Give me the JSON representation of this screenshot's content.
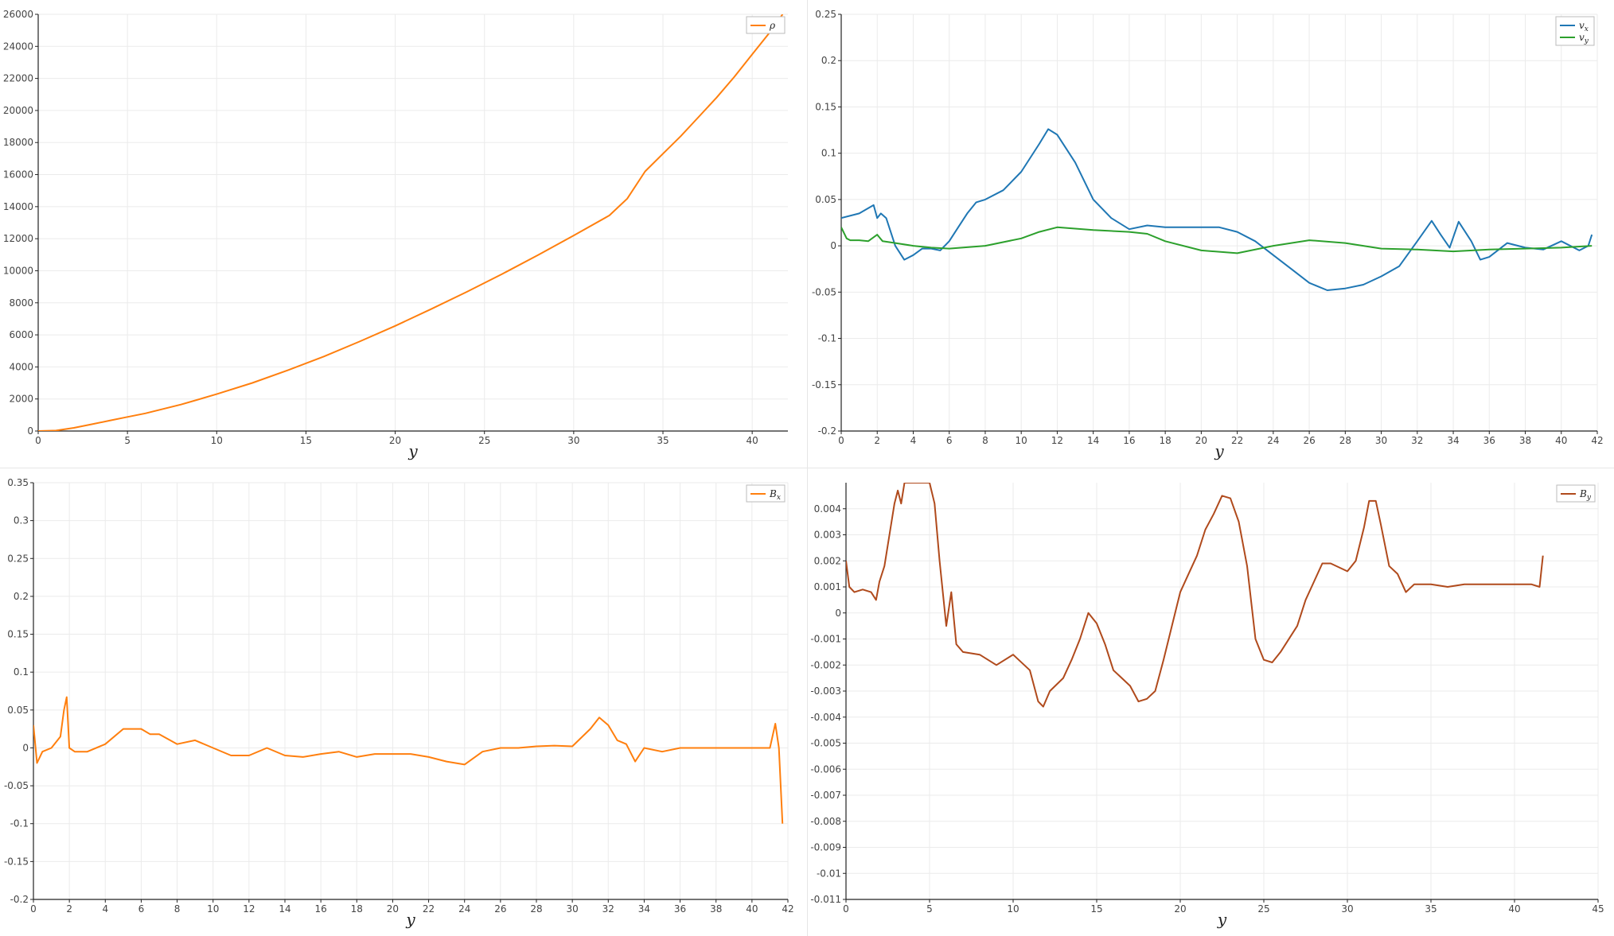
{
  "colors": {
    "orange": "#ff7f0e",
    "blue": "#1f77b4",
    "green": "#2ca02c",
    "brown": "#b04a1c",
    "grid": "#ebebeb",
    "axis": "#222222"
  },
  "chart_data": [
    {
      "id": "rho",
      "type": "line",
      "xlabel": "y",
      "xlim": [
        0,
        42
      ],
      "ylim": [
        0,
        26000
      ],
      "xticks": [
        0,
        5,
        10,
        15,
        20,
        25,
        30,
        35,
        40
      ],
      "yticks": [
        0,
        2000,
        4000,
        6000,
        8000,
        10000,
        12000,
        14000,
        16000,
        18000,
        20000,
        22000,
        24000,
        26000
      ],
      "legend": "top-right",
      "series": [
        {
          "name": "ρ",
          "name_sub": "",
          "color": "#ff7f0e",
          "x": [
            0,
            1,
            2,
            3,
            4,
            5,
            6,
            8,
            10,
            12,
            14,
            16,
            18,
            20,
            22,
            24,
            26,
            28,
            30,
            32,
            33,
            34,
            35,
            36,
            37,
            38,
            39,
            40,
            41,
            41.7
          ],
          "y": [
            0,
            30,
            200,
            420,
            650,
            880,
            1100,
            1650,
            2300,
            3000,
            3800,
            4650,
            5580,
            6560,
            7600,
            8680,
            9800,
            10980,
            12200,
            13450,
            14500,
            16200,
            17300,
            18400,
            19600,
            20800,
            22100,
            23500,
            24900,
            26000
          ]
        }
      ]
    },
    {
      "id": "velocity",
      "type": "line",
      "xlabel": "y",
      "xlim": [
        0,
        42
      ],
      "ylim": [
        -0.2,
        0.25
      ],
      "xticks": [
        0,
        2,
        4,
        6,
        8,
        10,
        12,
        14,
        16,
        18,
        20,
        22,
        24,
        26,
        28,
        30,
        32,
        34,
        36,
        38,
        40,
        42
      ],
      "yticks": [
        -0.2,
        -0.15,
        -0.1,
        -0.05,
        0,
        0.05,
        0.1,
        0.15,
        0.2,
        0.25
      ],
      "ytick_labels": [
        "-0.2",
        "-0.15",
        "-0.1",
        "-0.05",
        "0",
        "0.05",
        "0.1",
        "0.15",
        "0.2",
        "0.25"
      ],
      "legend": "top-right",
      "series": [
        {
          "name": "v",
          "name_sub": "x",
          "color": "#1f77b4",
          "x": [
            0,
            1,
            1.8,
            2.0,
            2.2,
            2.5,
            3,
            3.5,
            4,
            4.5,
            5,
            5.5,
            6,
            6.5,
            7,
            7.5,
            8,
            9,
            10,
            11,
            11.5,
            12,
            13,
            14,
            15,
            16,
            17,
            18,
            19,
            20,
            21,
            22,
            23,
            24,
            25,
            26,
            27,
            28,
            29,
            30,
            31,
            32,
            32.8,
            33.3,
            33.8,
            34.3,
            35,
            35.5,
            36,
            37,
            38,
            39,
            40,
            41,
            41.5,
            41.7
          ],
          "y": [
            0.03,
            0.035,
            0.044,
            0.03,
            0.035,
            0.03,
            0.0,
            -0.015,
            -0.01,
            -0.003,
            -0.003,
            -0.005,
            0.005,
            0.02,
            0.035,
            0.047,
            0.05,
            0.06,
            0.08,
            0.11,
            0.126,
            0.12,
            0.09,
            0.05,
            0.03,
            0.018,
            0.022,
            0.02,
            0.02,
            0.02,
            0.02,
            0.015,
            0.005,
            -0.01,
            -0.025,
            -0.04,
            -0.048,
            -0.046,
            -0.042,
            -0.033,
            -0.022,
            0.005,
            0.027,
            0.012,
            -0.002,
            0.026,
            0.005,
            -0.015,
            -0.012,
            0.003,
            -0.002,
            -0.004,
            0.005,
            -0.005,
            0.0,
            0.012
          ]
        },
        {
          "name": "v",
          "name_sub": "y",
          "color": "#2ca02c",
          "x": [
            0,
            0.3,
            0.5,
            1,
            1.5,
            2,
            2.3,
            3,
            4,
            5,
            6,
            8,
            10,
            11,
            12,
            14,
            16,
            17,
            18,
            20,
            22,
            24,
            26,
            28,
            30,
            32,
            34,
            36,
            38,
            40,
            41.7
          ],
          "y": [
            0.02,
            0.008,
            0.006,
            0.006,
            0.005,
            0.012,
            0.005,
            0.003,
            0.0,
            -0.002,
            -0.003,
            0.0,
            0.008,
            0.015,
            0.02,
            0.017,
            0.015,
            0.013,
            0.005,
            -0.005,
            -0.008,
            0.0,
            0.006,
            0.003,
            -0.003,
            -0.004,
            -0.006,
            -0.004,
            -0.003,
            -0.002,
            0.0
          ]
        }
      ]
    },
    {
      "id": "bx",
      "type": "line",
      "xlabel": "y",
      "xlim": [
        0,
        42
      ],
      "ylim": [
        -0.2,
        0.35
      ],
      "xticks": [
        0,
        2,
        4,
        6,
        8,
        10,
        12,
        14,
        16,
        18,
        20,
        22,
        24,
        26,
        28,
        30,
        32,
        34,
        36,
        38,
        40,
        42
      ],
      "yticks": [
        -0.2,
        -0.15,
        -0.1,
        -0.05,
        0,
        0.05,
        0.1,
        0.15,
        0.2,
        0.25,
        0.3,
        0.35
      ],
      "ytick_labels": [
        "-0.2",
        "-0.15",
        "-0.1",
        "-0.05",
        "0",
        "0.05",
        "0.1",
        "0.15",
        "0.2",
        "0.25",
        "0.3",
        "0.35"
      ],
      "legend": "top-right",
      "series": [
        {
          "name": "B",
          "name_sub": "x",
          "color": "#ff7f0e",
          "x": [
            0,
            0.2,
            0.5,
            1,
            1.5,
            1.7,
            1.85,
            2.0,
            2.3,
            3,
            4,
            5,
            6,
            6.5,
            7,
            8,
            9,
            10,
            11,
            12,
            13,
            14,
            15,
            16,
            17,
            18,
            19,
            20,
            21,
            22,
            23,
            24,
            25,
            26,
            27,
            28,
            29,
            30,
            31,
            31.5,
            32,
            32.5,
            33,
            33.5,
            34,
            35,
            36,
            37,
            38,
            39,
            40,
            41,
            41.3,
            41.5,
            41.7
          ],
          "y": [
            0.03,
            -0.02,
            -0.005,
            0.0,
            0.015,
            0.05,
            0.067,
            0.0,
            -0.005,
            -0.005,
            0.005,
            0.025,
            0.025,
            0.018,
            0.018,
            0.005,
            0.01,
            0.0,
            -0.01,
            -0.01,
            0.0,
            -0.01,
            -0.012,
            -0.008,
            -0.005,
            -0.012,
            -0.008,
            -0.008,
            -0.008,
            -0.012,
            -0.018,
            -0.022,
            -0.005,
            0.0,
            0.0,
            0.002,
            0.003,
            0.002,
            0.025,
            0.04,
            0.03,
            0.01,
            0.005,
            -0.018,
            0.0,
            -0.005,
            0.0,
            0.0,
            0.0,
            0.0,
            0.0,
            0.0,
            0.032,
            0.0,
            -0.1
          ]
        }
      ]
    },
    {
      "id": "by",
      "type": "line",
      "xlabel": "y",
      "xlim": [
        0,
        45
      ],
      "ylim": [
        -0.011,
        0.005
      ],
      "xticks": [
        0,
        5,
        10,
        15,
        20,
        25,
        30,
        35,
        40,
        45
      ],
      "yticks": [
        -0.011,
        -0.01,
        -0.009,
        -0.008,
        -0.007,
        -0.006,
        -0.005,
        -0.004,
        -0.003,
        -0.002,
        -0.001,
        0,
        0.001,
        0.002,
        0.003,
        0.004
      ],
      "ytick_labels": [
        "-0.011",
        "-0.01",
        "-0.009",
        "-0.008",
        "-0.007",
        "-0.006",
        "-0.005",
        "-0.004",
        "-0.003",
        "-0.002",
        "-0.001",
        "0",
        "0.001",
        "0.002",
        "0.003",
        "0.004"
      ],
      "legend": "top-right",
      "series": [
        {
          "name": "B",
          "name_sub": "y",
          "color": "#b04a1c",
          "x": [
            0,
            0.2,
            0.5,
            1,
            1.5,
            1.8,
            2,
            2.3,
            2.6,
            2.9,
            3.1,
            3.3,
            3.5,
            5.0,
            5.3,
            5.6,
            6,
            6.3,
            6.6,
            7,
            8,
            9,
            10,
            11,
            11.5,
            11.8,
            12.2,
            13,
            13.5,
            14,
            14.5,
            15,
            15.5,
            16,
            16.5,
            17,
            17.5,
            18,
            18.5,
            19,
            19.5,
            20,
            20.5,
            21,
            21.5,
            22,
            22.5,
            23,
            23.5,
            24,
            24.5,
            25,
            25.5,
            26,
            27,
            27.5,
            28,
            28.5,
            29,
            30,
            30.5,
            31,
            31.3,
            31.7,
            32,
            32.5,
            33,
            33.5,
            34,
            35,
            36,
            37,
            38,
            39,
            40,
            41,
            41.5,
            41.7
          ],
          "y": [
            0.002,
            0.001,
            0.0008,
            0.0009,
            0.0008,
            0.0005,
            0.0012,
            0.0018,
            0.003,
            0.0042,
            0.0047,
            0.0042,
            0.005,
            0.005,
            0.0042,
            0.002,
            -0.0005,
            0.0008,
            -0.0012,
            -0.0015,
            -0.0016,
            -0.002,
            -0.0016,
            -0.0022,
            -0.0034,
            -0.0036,
            -0.003,
            -0.0025,
            -0.0018,
            -0.001,
            0.0,
            -0.0004,
            -0.0012,
            -0.0022,
            -0.0025,
            -0.0028,
            -0.0034,
            -0.0033,
            -0.003,
            -0.0018,
            -0.0005,
            0.0008,
            0.0015,
            0.0022,
            0.0032,
            0.0038,
            0.0045,
            0.0044,
            0.0035,
            0.0018,
            -0.001,
            -0.0018,
            -0.0019,
            -0.0015,
            -0.0005,
            0.0005,
            0.0012,
            0.0019,
            0.0019,
            0.0016,
            0.002,
            0.0033,
            0.0043,
            0.0043,
            0.0034,
            0.0018,
            0.0015,
            0.0008,
            0.0011,
            0.0011,
            0.001,
            0.0011,
            0.0011,
            0.0011,
            0.0011,
            0.0011,
            0.001,
            0.0022
          ]
        }
      ]
    }
  ]
}
